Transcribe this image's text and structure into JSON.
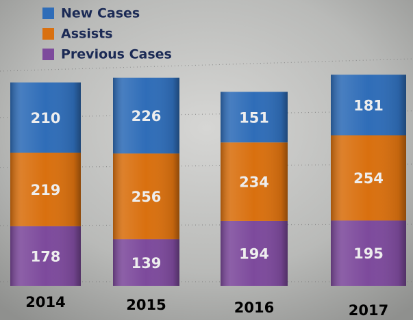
{
  "chart_data": {
    "type": "stacked_bar",
    "categories": [
      "2014",
      "2015",
      "2016",
      "2017"
    ],
    "series": [
      {
        "name": "New Cases",
        "color": "#2f6db8",
        "values": [
          210,
          226,
          151,
          181
        ]
      },
      {
        "name": "Assists",
        "color": "#d9700f",
        "values": [
          219,
          256,
          234,
          254
        ]
      },
      {
        "name": "Previous Cases",
        "color": "#7d4a9c",
        "values": [
          178,
          139,
          194,
          195
        ]
      }
    ]
  }
}
